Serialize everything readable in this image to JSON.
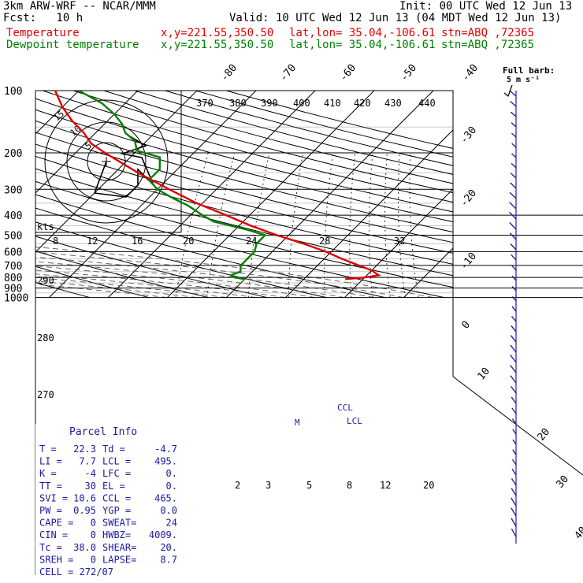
{
  "header": {
    "model": "3km ARW-WRF -- NCAR/MMM",
    "init": "Init: 00 UTC Wed 12 Jun 13",
    "fcst": "Fcst:   10 h",
    "valid": "Valid: 10 UTC Wed 12 Jun 13 (04 MDT Wed 12 Jun 13)",
    "temp_label": "Temperature",
    "temp_xy": "x,y=221.55,350.50",
    "temp_latlon": "lat,lon= 35.04,-106.61",
    "temp_stn": "stn=ABQ ,72365",
    "dew_label": "Dewpoint temperature",
    "dew_xy": "x,y=221.55,350.50",
    "dew_latlon": "lat,lon= 35.04,-106.61",
    "dew_stn": "stn=ABQ ,72365"
  },
  "colors": {
    "temperature": "#e00000",
    "dewpoint": "#008000",
    "wind_barbs": "#2020a0",
    "grid": "#000000",
    "moist_adiabat": "#555555"
  },
  "barb_legend": {
    "title": "Full barb:",
    "value": "5 m s⁻¹"
  },
  "hodograph": {
    "units": "kts",
    "ring_labels": [
      "5",
      "10",
      "15"
    ],
    "points_uv": [
      [
        0,
        0
      ],
      [
        -3,
        -8
      ],
      [
        5,
        -9
      ],
      [
        8,
        -6
      ],
      [
        8,
        -2
      ],
      [
        12,
        -6
      ],
      [
        9,
        1
      ],
      [
        4,
        2
      ],
      [
        10,
        4
      ],
      [
        5,
        7
      ],
      [
        8,
        5
      ]
    ]
  },
  "parcel_info": {
    "title": "Parcel Info",
    "rows": [
      [
        "T  =",
        "22.3",
        "Td =",
        "-4.7"
      ],
      [
        "LI =",
        "7.7",
        "LCL =",
        "495."
      ],
      [
        "K  =",
        "-4",
        "LFC =",
        "0."
      ],
      [
        "TT =",
        "30",
        "EL  =",
        "0."
      ],
      [
        "SVI =",
        "10.6",
        "CCL =",
        "465."
      ],
      [
        "PW =",
        "0.95",
        "YGP =",
        "0.0"
      ],
      [
        "CAPE =",
        "0",
        "SWEAT=",
        "24"
      ],
      [
        "CIN =",
        "0",
        "HWBZ=",
        "4009."
      ],
      [
        "Tc =",
        "38.0",
        "SHEAR=",
        "20."
      ],
      [
        "SREH =",
        "0",
        "LAPSE=",
        "8.7"
      ],
      [
        "CELL = 272/07",
        "",
        "",
        ""
      ]
    ]
  },
  "level_marks": {
    "ccl": "CCL",
    "lcl": "LCL",
    "mix": "M"
  },
  "chart_data": {
    "type": "line",
    "title": "",
    "pressure_axis": {
      "label": "",
      "log_scale": true,
      "range_hpa": [
        1000,
        100
      ],
      "tick_labels": [
        "100",
        "200",
        "300",
        "400",
        "500",
        "600",
        "700",
        "800",
        "900",
        "1000"
      ]
    },
    "isotherm_labels_top": [
      "-80",
      "-70",
      "-60",
      "-50",
      "-40"
    ],
    "isotherm_labels_right": [
      "-30",
      "-20",
      "-10",
      "0",
      "10",
      "20",
      "30",
      "40"
    ],
    "theta_labels": [
      "370",
      "380",
      "390",
      "400",
      "410",
      "420",
      "430",
      "440"
    ],
    "theta_left_labels": [
      "290",
      "280",
      "270"
    ],
    "mixing_ratio_labels": [
      "8",
      "12",
      "16",
      "20",
      "24",
      "28",
      "32"
    ],
    "mixing_ratio_labels_low": [
      "2",
      "3",
      "5",
      "8",
      "12",
      "20"
    ],
    "series": [
      {
        "name": "Temperature",
        "pressure_hpa": [
          815,
          800,
          780,
          740,
          700,
          650,
          600,
          550,
          500,
          450,
          400,
          350,
          300,
          250,
          200,
          180,
          160,
          140,
          120,
          100
        ],
        "temp_c": [
          17,
          20,
          22,
          20,
          17,
          13,
          9,
          4,
          -2,
          -8,
          -14,
          -21,
          -28,
          -36,
          -45,
          -49,
          -52,
          -56,
          -60,
          -64
        ]
      },
      {
        "name": "Dewpoint temperature",
        "pressure_hpa": [
          815,
          800,
          780,
          750,
          700,
          650,
          600,
          550,
          520,
          500,
          470,
          430,
          400,
          360,
          330,
          300,
          270,
          240,
          210,
          195,
          175,
          160,
          145,
          130,
          115,
          100
        ],
        "temp_c": [
          0,
          -2,
          -3,
          -2,
          -3,
          -3,
          -3,
          -4,
          -4,
          -4,
          -8,
          -15,
          -18,
          -22,
          -26,
          -30,
          -33,
          -33,
          -35,
          -40,
          -42,
          -45,
          -47,
          -50,
          -54,
          -60
        ]
      }
    ]
  }
}
